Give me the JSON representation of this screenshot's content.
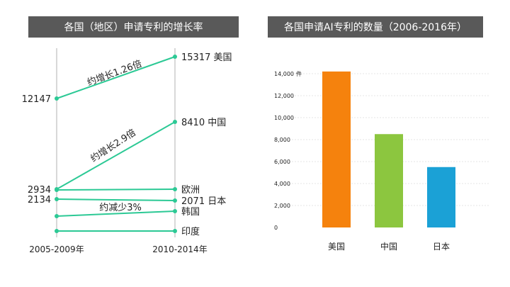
{
  "left_title": "各国（地区）申请专利的增长率",
  "right_title": "各国申请AI专利的数量（2006-2016年）",
  "chart_data": [
    {
      "type": "line",
      "title": "各国（地区）申请专利的增长率",
      "x": [
        "2005-2009年",
        "2010-2014年"
      ],
      "series": [
        {
          "name": "美国",
          "values": [
            12147,
            15317
          ],
          "start_label": "12147",
          "end_label": "15317"
        },
        {
          "name": "中国",
          "values": [
            2934,
            8410
          ],
          "start_label": "2934",
          "end_label": "8410"
        },
        {
          "name": "欧洲",
          "values": [
            null,
            null
          ],
          "start_label": "",
          "end_label": ""
        },
        {
          "name": "日本",
          "values": [
            2134,
            2071
          ],
          "start_label": "2134",
          "end_label": "2071"
        },
        {
          "name": "韩国",
          "values": [
            null,
            null
          ],
          "start_label": "",
          "end_label": ""
        },
        {
          "name": "印度",
          "values": [
            null,
            null
          ],
          "start_label": "",
          "end_label": ""
        }
      ],
      "annotations": [
        "约增长1.26倍",
        "约增长2.9倍",
        "约减少3%"
      ],
      "line_color": "#2cc995"
    },
    {
      "type": "bar",
      "title": "各国申请AI专利的数量（2006-2016年）",
      "categories": [
        "美国",
        "中国",
        "日本"
      ],
      "values": [
        14200,
        8500,
        5500
      ],
      "colors": [
        "#f5820d",
        "#8cc63f",
        "#1ba1d6"
      ],
      "ylim": [
        0,
        14000
      ],
      "yticks": [
        "0",
        "2,000",
        "4,000",
        "6,000",
        "8,000",
        "10,000",
        "12,000",
        "14,000"
      ],
      "yunit": "件",
      "grid": true
    }
  ]
}
